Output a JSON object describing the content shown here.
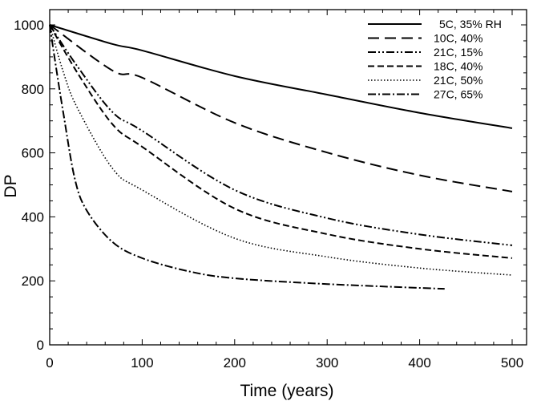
{
  "chart_data": {
    "type": "line",
    "title": "",
    "xlabel": "Time (years)",
    "ylabel": "DP",
    "xlim": [
      0,
      510
    ],
    "ylim": [
      0,
      1040
    ],
    "xticks": [
      0,
      100,
      200,
      300,
      400,
      500
    ],
    "yticks": [
      0,
      200,
      400,
      600,
      800,
      1000
    ],
    "x_minor_step": 20,
    "y_minor_step": 50,
    "grid": false,
    "legend_position": "upper right",
    "series": [
      {
        "name": "5C, 35% RH",
        "dash": "solid",
        "x": [
          0,
          68,
          100,
          200,
          300,
          400,
          500
        ],
        "y": [
          1000,
          940,
          920,
          840,
          782,
          725,
          677
        ]
      },
      {
        "name": "10C, 40%",
        "dash": "long-dash",
        "x": [
          0,
          68,
          100,
          200,
          300,
          400,
          500
        ],
        "y": [
          1000,
          857,
          835,
          694,
          601,
          530,
          479
        ]
      },
      {
        "name": "21C, 15%",
        "dash": "dash-dot-dot",
        "x": [
          0,
          30,
          68,
          100,
          200,
          300,
          400,
          500
        ],
        "y": [
          1000,
          870,
          727,
          669,
          484,
          396,
          345,
          311
        ]
      },
      {
        "name": "18C, 40%",
        "dash": "short-dash",
        "x": [
          0,
          30,
          68,
          100,
          200,
          300,
          400,
          500
        ],
        "y": [
          1000,
          850,
          689,
          619,
          426,
          346,
          300,
          271
        ]
      },
      {
        "name": "21C, 50%",
        "dash": "dotted",
        "x": [
          0,
          15,
          30,
          68,
          100,
          200,
          300,
          400,
          500
        ],
        "y": [
          1000,
          850,
          740,
          551,
          484,
          333,
          275,
          240,
          218
        ]
      },
      {
        "name": "27C, 65%",
        "dash": "dash-dot",
        "x": [
          0,
          7,
          15,
          27,
          40,
          68,
          100,
          150,
          200,
          300,
          427
        ],
        "y": [
          1000,
          865,
          720,
          521,
          420,
          321,
          271,
          230,
          208,
          190,
          175
        ]
      }
    ]
  },
  "axes": {
    "x_title": "Time (years)",
    "y_title": "DP"
  }
}
